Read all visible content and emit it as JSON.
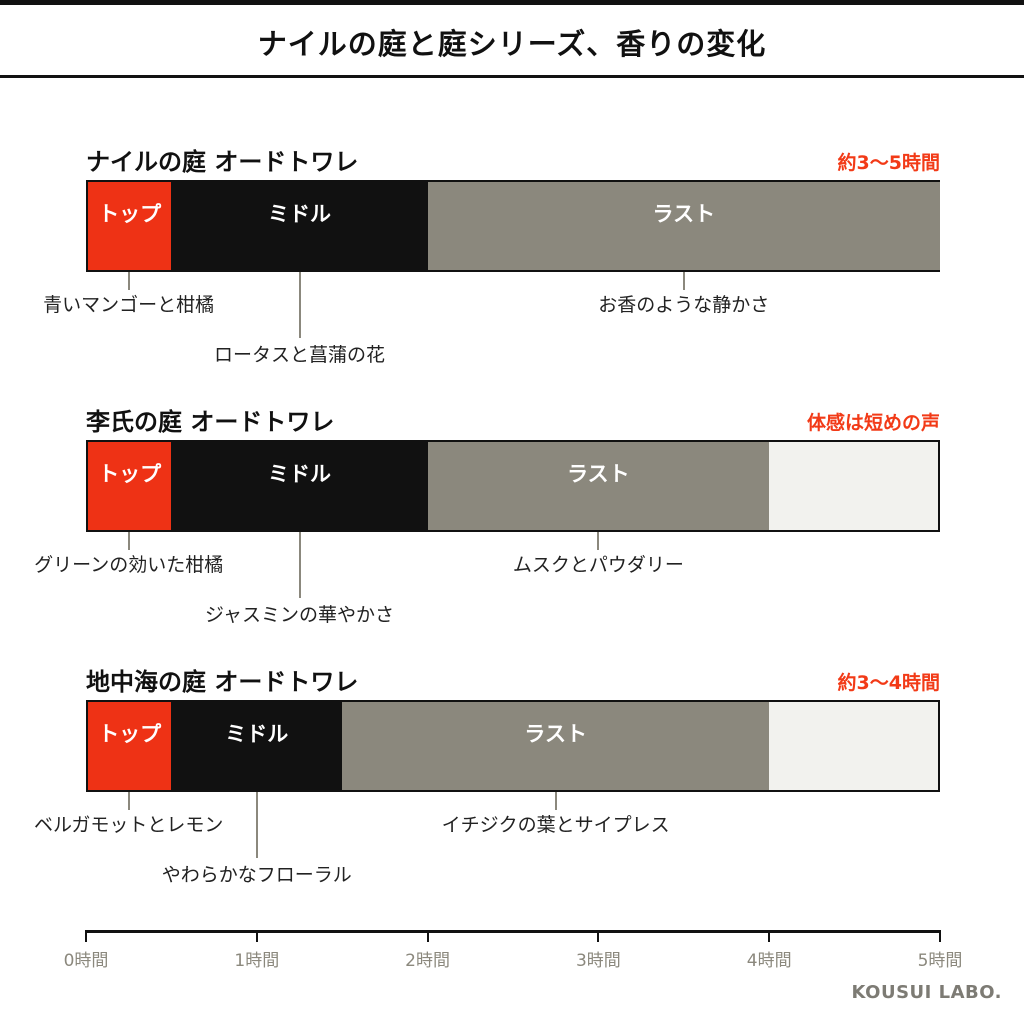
{
  "title": "ナイルの庭と庭シリーズ、香りの変化",
  "colors": {
    "top": "#ee3215",
    "middle": "#111111",
    "last": "#8b887d",
    "accent": "#f23a17",
    "empty": "#f2f2ee"
  },
  "axis": {
    "max_hours": 5,
    "ticks": [
      "0時間",
      "1時間",
      "2時間",
      "3時間",
      "4時間",
      "5時間"
    ]
  },
  "products": [
    {
      "name": "ナイルの庭 オードトワレ",
      "duration": "約3〜5時間",
      "segments": [
        {
          "label": "トップ",
          "start": 0,
          "end": 0.5
        },
        {
          "label": "ミドル",
          "start": 0.5,
          "end": 2.0
        },
        {
          "label": "ラスト",
          "start": 2.0,
          "end": 5.0
        }
      ],
      "notes": [
        {
          "text": "青いマンゴーと柑橘",
          "at": 0.25,
          "row": 1
        },
        {
          "text": "ロータスと菖蒲の花",
          "at": 1.25,
          "row": 2
        },
        {
          "text": "お香のような静かさ",
          "at": 3.5,
          "row": 1
        }
      ]
    },
    {
      "name": "李氏の庭 オードトワレ",
      "duration": "体感は短めの声",
      "segments": [
        {
          "label": "トップ",
          "start": 0,
          "end": 0.5
        },
        {
          "label": "ミドル",
          "start": 0.5,
          "end": 2.0
        },
        {
          "label": "ラスト",
          "start": 2.0,
          "end": 4.0
        }
      ],
      "notes": [
        {
          "text": "グリーンの効いた柑橘",
          "at": 0.25,
          "row": 1
        },
        {
          "text": "ジャスミンの華やかさ",
          "at": 1.25,
          "row": 2
        },
        {
          "text": "ムスクとパウダリー",
          "at": 3.0,
          "row": 1
        }
      ]
    },
    {
      "name": "地中海の庭 オードトワレ",
      "duration": "約3〜4時間",
      "segments": [
        {
          "label": "トップ",
          "start": 0,
          "end": 0.5
        },
        {
          "label": "ミドル",
          "start": 0.5,
          "end": 1.5
        },
        {
          "label": "ラスト",
          "start": 1.5,
          "end": 4.0
        }
      ],
      "notes": [
        {
          "text": "ベルガモットとレモン",
          "at": 0.25,
          "row": 1
        },
        {
          "text": "やわらかなフローラル",
          "at": 1.0,
          "row": 2
        },
        {
          "text": "イチジクの葉とサイプレス",
          "at": 2.75,
          "row": 1
        }
      ]
    }
  ],
  "brand": "KOUSUI LABO."
}
